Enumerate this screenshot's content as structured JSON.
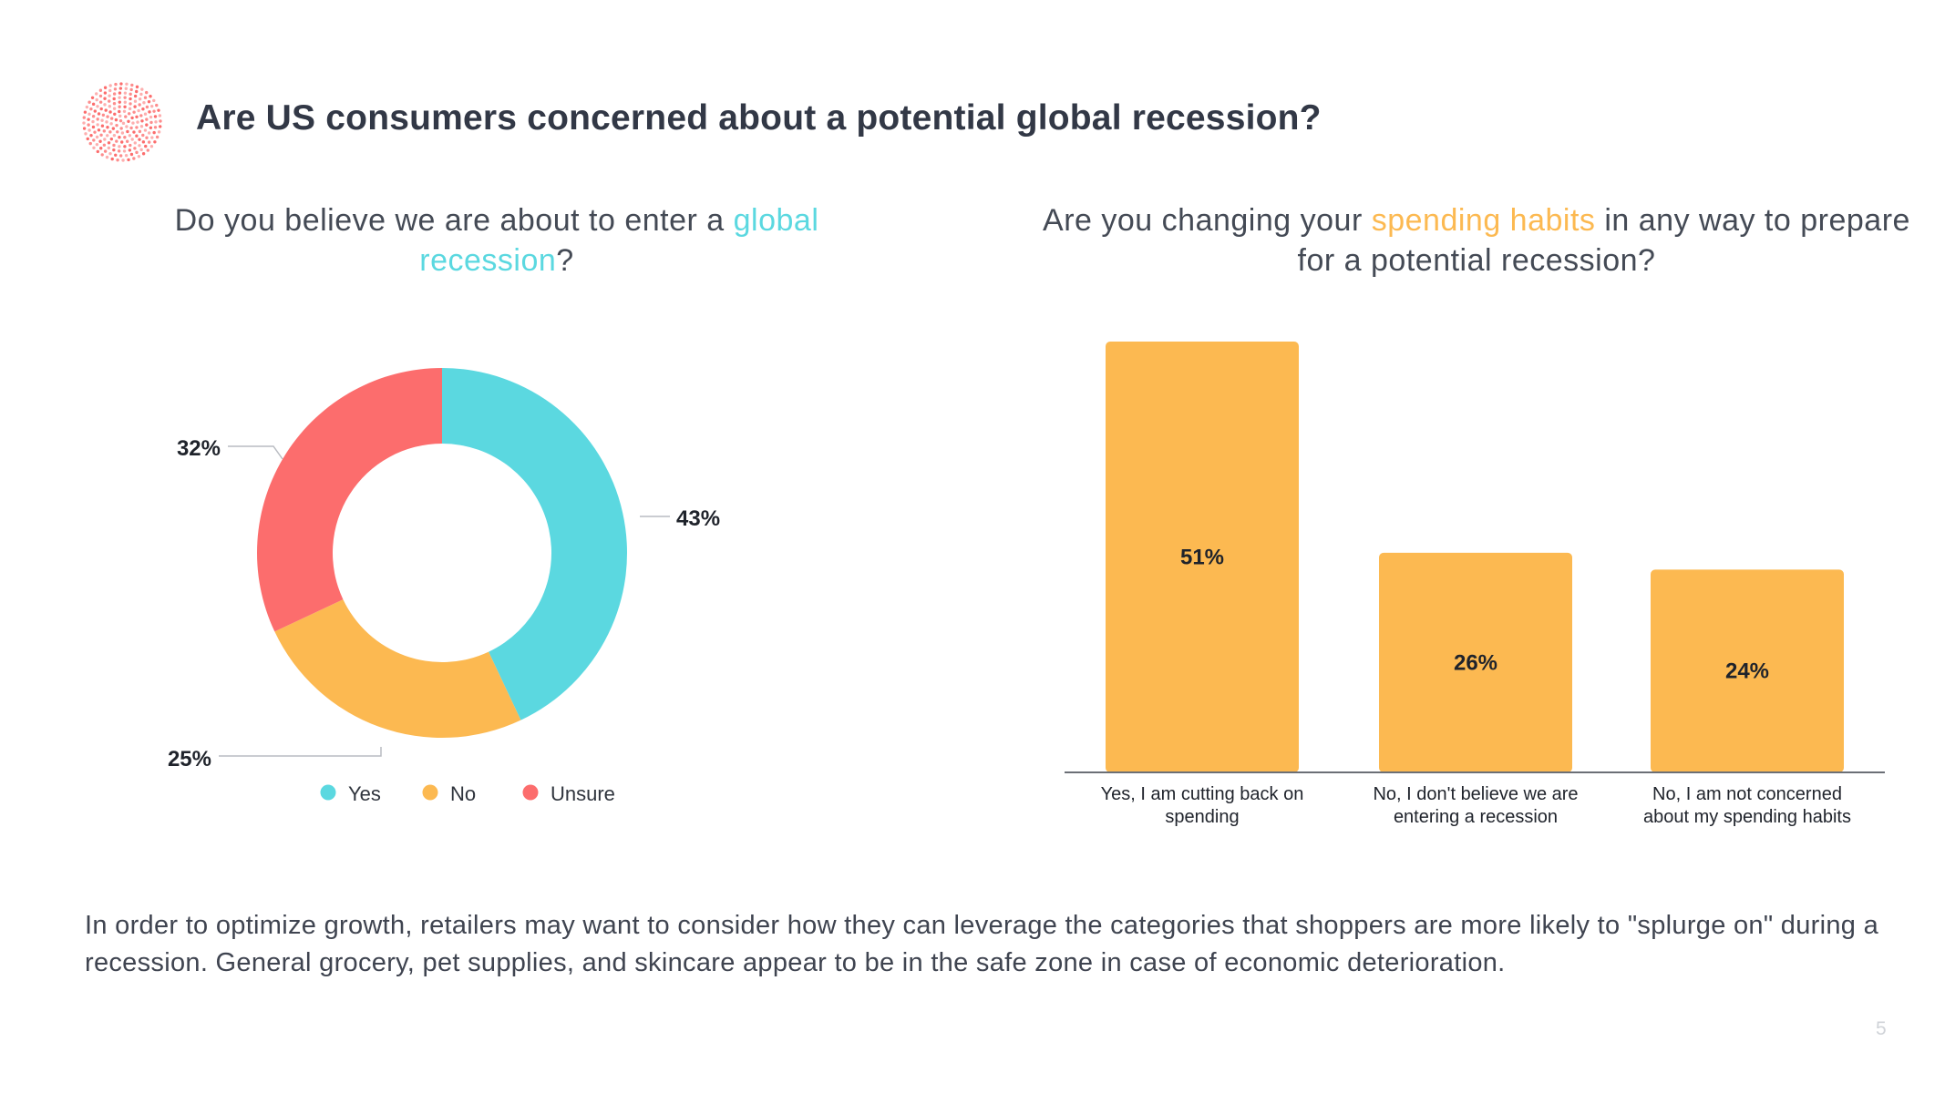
{
  "title": "Are US consumers concerned about a potential global recession?",
  "left_question": {
    "before": "Do you believe we are about to enter a ",
    "highlight": "global recession",
    "after": "?"
  },
  "right_question": {
    "before": "Are you changing your ",
    "highlight": "spending habits",
    "after": " in any way to prepare for a potential recession?"
  },
  "colors": {
    "yes": "#5bd8e0",
    "no": "#fcb951",
    "unsure": "#fc6d6d",
    "bar": "#fcb951",
    "highlight_teal": "#5bd8e0",
    "highlight_orange": "#fcb951"
  },
  "chart_data": [
    {
      "type": "pie",
      "variant": "donut",
      "title": "Do you believe we are about to enter a global recession?",
      "categories": [
        "Yes",
        "No",
        "Unsure"
      ],
      "values": [
        43,
        25,
        32
      ],
      "value_labels": [
        "43%",
        "25%",
        "32%"
      ],
      "legend": [
        "Yes",
        "No",
        "Unsure"
      ],
      "legend_placement": "bottom"
    },
    {
      "type": "bar",
      "title": "Are you changing your spending habits in any way to prepare for a potential recession?",
      "categories": [
        [
          "Yes, I am cutting back on",
          "spending"
        ],
        [
          "No, I don't believe we are",
          "entering a recession"
        ],
        [
          "No, I am not concerned",
          "about my spending habits"
        ]
      ],
      "values": [
        51,
        26,
        24
      ],
      "value_labels": [
        "51%",
        "26%",
        "24%"
      ],
      "ylim": [
        0,
        51
      ],
      "unit": "%",
      "grid": false
    }
  ],
  "body_text": "In order to optimize growth, retailers may want to consider how they can leverage the categories that shoppers are more likely to \"splurge on\" during a recession. General grocery, pet supplies, and skincare appear to be in the safe zone in case of economic deterioration.",
  "page_number": "5"
}
